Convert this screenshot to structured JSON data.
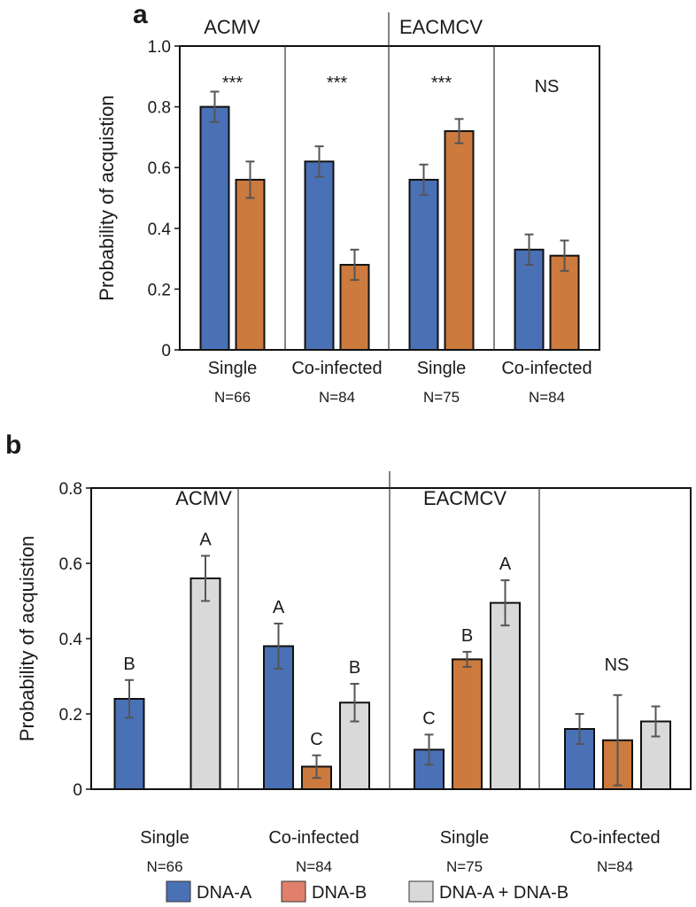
{
  "colors": {
    "dna_a": "#4a70b5",
    "dna_b": "#cd7a3e",
    "dna_ab": "#d9d9d9",
    "legend_dna_b": "#e0806a",
    "error": "#555555"
  },
  "legend": [
    "DNA-A",
    "DNA-B",
    "DNA-A + DNA-B"
  ],
  "chart_data": [
    {
      "type": "bar",
      "panel": "a",
      "ylabel": "Probability of acquistion",
      "ylim": [
        0,
        1.0
      ],
      "yticks": [
        "0",
        "0.2",
        "0.4",
        "0.6",
        "0.8",
        "1.0"
      ],
      "virus_labels": [
        "ACMV",
        "EACMCV"
      ],
      "categories": [
        "Single",
        "Co-infected",
        "Single",
        "Co-infected"
      ],
      "n_labels": [
        "N=66",
        "N=84",
        "N=75",
        "N=84"
      ],
      "significance": [
        "***",
        "***",
        "***",
        "NS"
      ],
      "series": [
        {
          "name": "DNA-A",
          "values": [
            0.8,
            0.62,
            0.56,
            0.33
          ],
          "errors": [
            0.05,
            0.05,
            0.05,
            0.05
          ]
        },
        {
          "name": "DNA-B",
          "values": [
            0.56,
            0.28,
            0.72,
            0.31
          ],
          "errors": [
            0.06,
            0.05,
            0.04,
            0.05
          ]
        }
      ]
    },
    {
      "type": "bar",
      "panel": "b",
      "ylabel": "Probability of acquistion",
      "ylim": [
        0,
        0.8
      ],
      "yticks": [
        "0",
        "0.2",
        "0.4",
        "0.6",
        "0.8"
      ],
      "virus_labels": [
        "ACMV",
        "EACMCV"
      ],
      "categories": [
        "Single",
        "Co-infected",
        "Single",
        "Co-infected"
      ],
      "n_labels": [
        "N=66",
        "N=84",
        "N=75",
        "N=84"
      ],
      "group_significance": [
        "",
        "",
        "",
        "NS"
      ],
      "series": [
        {
          "name": "DNA-A",
          "values": [
            0.24,
            0.38,
            0.105,
            0.16
          ],
          "errors": [
            0.05,
            0.06,
            0.04,
            0.04
          ],
          "letters": [
            "B",
            "A",
            "C",
            ""
          ]
        },
        {
          "name": "DNA-B",
          "values": [
            null,
            0.06,
            0.345,
            0.13
          ],
          "errors": [
            null,
            0.03,
            0.02,
            0.12
          ],
          "letters": [
            "",
            "C",
            "B",
            ""
          ]
        },
        {
          "name": "DNA-A + DNA-B",
          "values": [
            0.56,
            0.23,
            0.495,
            0.18
          ],
          "errors": [
            0.06,
            0.05,
            0.06,
            0.04
          ],
          "letters": [
            "A",
            "B",
            "A",
            ""
          ]
        }
      ]
    }
  ]
}
